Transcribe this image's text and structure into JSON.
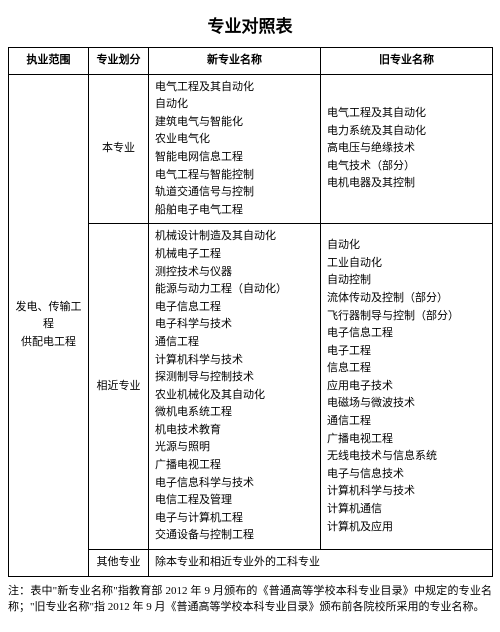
{
  "title": "专业对照表",
  "headers": {
    "scope": "执业范围",
    "division": "专业划分",
    "new_name": "新专业名称",
    "old_name": "旧专业名称"
  },
  "scope": "发电、传输工程\n供配电工程",
  "rows": [
    {
      "division": "本专业",
      "new_list": [
        "电气工程及其自动化",
        "自动化",
        "建筑电气与智能化",
        "农业电气化",
        "智能电网信息工程",
        "电气工程与智能控制",
        "轨道交通信号与控制",
        "船舶电子电气工程"
      ],
      "old_list": [
        "电气工程及其自动化",
        "电力系统及其自动化",
        "高电压与绝缘技术",
        "电气技术（部分）",
        "电机电器及其控制"
      ]
    },
    {
      "division": "相近专业",
      "new_list": [
        "机械设计制造及其自动化",
        "机械电子工程",
        "测控技术与仪器",
        "能源与动力工程（自动化）",
        "电子信息工程",
        "电子科学与技术",
        "通信工程",
        "计算机科学与技术",
        "探测制导与控制技术",
        "农业机械化及其自动化",
        "微机电系统工程",
        "机电技术教育",
        "光源与照明",
        "广播电视工程",
        "电子信息科学与技术",
        "电信工程及管理",
        "电子与计算机工程",
        "交通设备与控制工程"
      ],
      "old_list": [
        "自动化",
        "工业自动化",
        "自动控制",
        "流体传动及控制（部分）",
        "飞行器制导与控制（部分）",
        "电子信息工程",
        "电子工程",
        "信息工程",
        "应用电子技术",
        "电磁场与微波技术",
        "通信工程",
        "广播电视工程",
        "无线电技术与信息系统",
        "电子与信息技术",
        "计算机科学与技术",
        "计算机通信",
        "计算机及应用"
      ]
    },
    {
      "division": "其他专业",
      "merged_text": "除本专业和相近专业外的工科专业"
    }
  ],
  "note": "注：表中\"新专业名称\"指教育部 2012 年 9 月颁布的《普通高等学校本科专业目录》中规定的专业名称；\"旧专业名称\"指 2012 年 9 月《普通高等学校本科专业目录》颁布前各院校所采用的专业名称。"
}
